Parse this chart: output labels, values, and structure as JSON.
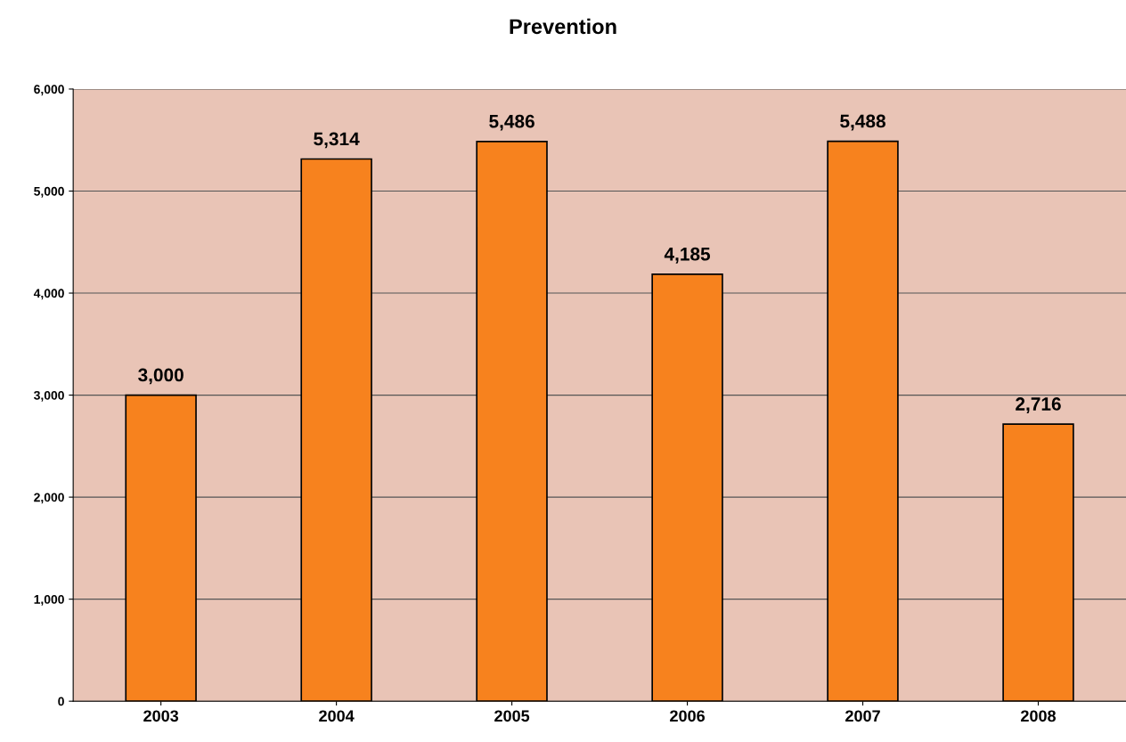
{
  "chart_data": {
    "type": "bar",
    "title": "Prevention",
    "categories": [
      "2003",
      "2004",
      "2005",
      "2006",
      "2007",
      "2008"
    ],
    "values": [
      3000,
      5314,
      5486,
      4185,
      5488,
      2716
    ],
    "value_labels": [
      "3,000",
      "5,314",
      "5,486",
      "4,185",
      "5,488",
      "2,716"
    ],
    "color": "#f7821e",
    "ylim": [
      0,
      6000
    ],
    "yticks": [
      {
        "value": 0,
        "label": "0"
      },
      {
        "value": 1000,
        "label": "1,000"
      },
      {
        "value": 2000,
        "label": "2,000"
      },
      {
        "value": 3000,
        "label": "3,000"
      },
      {
        "value": 4000,
        "label": "4,000"
      },
      {
        "value": 5000,
        "label": "5,000"
      },
      {
        "value": 6000,
        "label": "6,000"
      }
    ],
    "grid": "y"
  }
}
